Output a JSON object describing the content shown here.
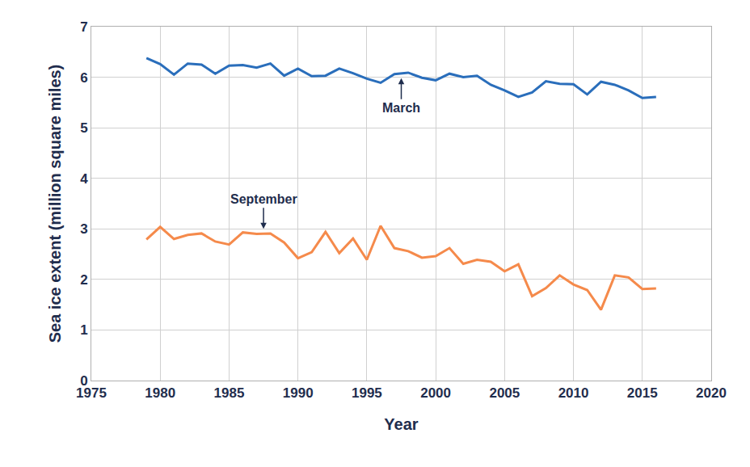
{
  "chart_data": {
    "type": "line",
    "x_label": "Year",
    "y_label": "Sea ice extent (million square miles)",
    "x": [
      1979,
      1980,
      1981,
      1982,
      1983,
      1984,
      1985,
      1986,
      1987,
      1988,
      1989,
      1990,
      1991,
      1992,
      1993,
      1994,
      1995,
      1996,
      1997,
      1998,
      1999,
      2000,
      2001,
      2002,
      2003,
      2004,
      2005,
      2006,
      2007,
      2008,
      2009,
      2010,
      2011,
      2012,
      2013,
      2014,
      2015,
      2016
    ],
    "series": [
      {
        "name": "March",
        "color": "#2a6ebb",
        "values": [
          6.38,
          6.26,
          6.05,
          6.27,
          6.25,
          6.07,
          6.23,
          6.24,
          6.19,
          6.27,
          6.03,
          6.17,
          6.02,
          6.03,
          6.17,
          6.08,
          5.97,
          5.89,
          6.06,
          6.09,
          5.99,
          5.94,
          6.07,
          6.0,
          6.03,
          5.85,
          5.74,
          5.61,
          5.7,
          5.92,
          5.87,
          5.86,
          5.66,
          5.91,
          5.85,
          5.74,
          5.59,
          5.61
        ]
      },
      {
        "name": "September",
        "color": "#f58a4b",
        "values": [
          2.79,
          3.04,
          2.8,
          2.88,
          2.91,
          2.75,
          2.69,
          2.93,
          2.9,
          2.91,
          2.73,
          2.42,
          2.54,
          2.94,
          2.52,
          2.81,
          2.39,
          3.06,
          2.62,
          2.56,
          2.43,
          2.46,
          2.62,
          2.31,
          2.39,
          2.35,
          2.16,
          2.3,
          1.67,
          1.83,
          2.08,
          1.9,
          1.79,
          1.4,
          2.08,
          2.04,
          1.81,
          1.82
        ]
      }
    ],
    "annotations": [
      {
        "text": "March",
        "x": 1997.5,
        "y": 5.98,
        "position": "below"
      },
      {
        "text": "September",
        "x": 1987.5,
        "y": 3.0,
        "position": "above"
      }
    ],
    "xlim": [
      1975,
      2020
    ],
    "xticks": [
      1975,
      1980,
      1985,
      1990,
      1995,
      2000,
      2005,
      2010,
      2015,
      2020
    ],
    "ylim": [
      0,
      7
    ],
    "yticks": [
      0,
      1,
      2,
      3,
      4,
      5,
      6,
      7
    ],
    "grid": true
  }
}
